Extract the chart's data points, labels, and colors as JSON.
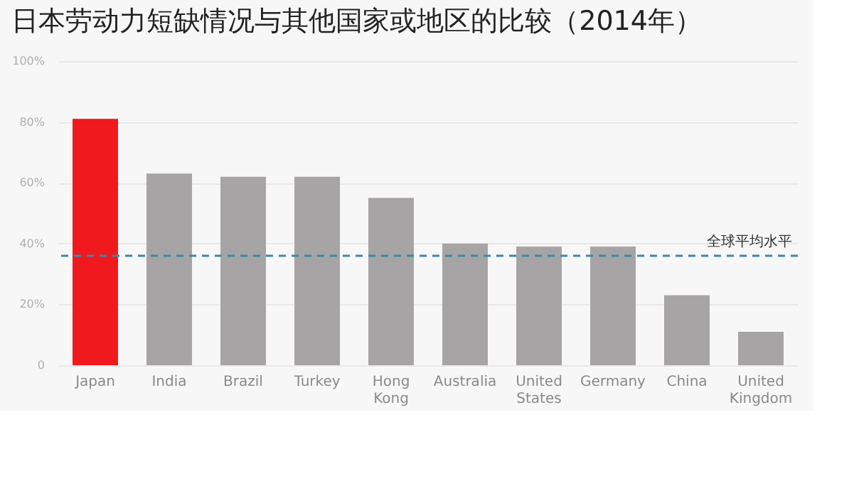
{
  "chart_data": {
    "type": "bar",
    "title": "日本劳动力短缺情况与其他国家或地区的比较（2014年）",
    "categories": [
      "Japan",
      "India",
      "Brazil",
      "Turkey",
      "Hong Kong",
      "Australia",
      "United States",
      "Germany",
      "China",
      "United Kingdom"
    ],
    "values": [
      81,
      63,
      62,
      62,
      55,
      40,
      39,
      39,
      23,
      11
    ],
    "colors": [
      "#f0191e",
      "#a7a4a6",
      "#a7a4a6",
      "#a7a4a6",
      "#a7a4a6",
      "#a7a4a6",
      "#a7a4a6",
      "#a7a4a6",
      "#a7a4a6",
      "#a7a4a6"
    ],
    "ylim": [
      0,
      100
    ],
    "yticks": [
      0,
      {
        "value": 20,
        "label": "20%"
      },
      {
        "value": 40,
        "label": "40%"
      },
      {
        "value": 60,
        "label": "60%"
      },
      {
        "value": 80,
        "label": "80%"
      },
      {
        "value": 100,
        "label": "100%"
      }
    ],
    "grid": "y",
    "ref_lines": [
      {
        "axis": "y",
        "value": 36,
        "label": "全球平均水平",
        "color": "#3a8aa6",
        "line_style": "dashed"
      }
    ]
  }
}
